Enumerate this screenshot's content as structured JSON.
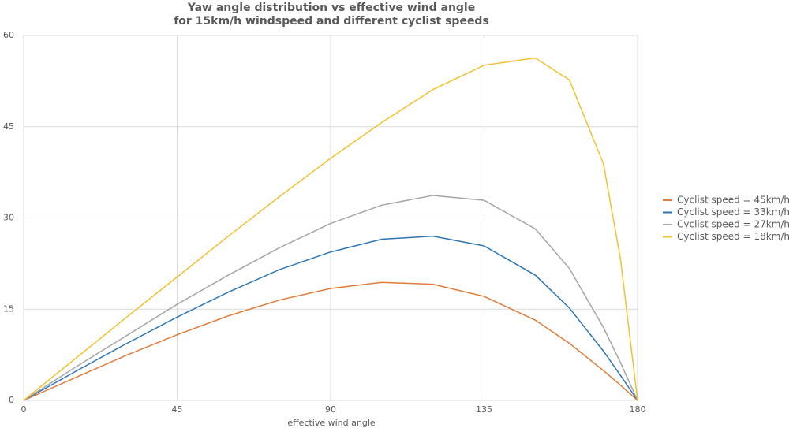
{
  "chart_data": {
    "type": "line",
    "title": [
      "Yaw angle distribution vs effective wind angle",
      "for 15km/h windspeed and different cyclist speeds"
    ],
    "x_label": "effective wind angle",
    "x": [
      0,
      15,
      30,
      45,
      60,
      75,
      90,
      105,
      120,
      135,
      150,
      160,
      170,
      175,
      180
    ],
    "series": [
      {
        "name": "Cyclist speed = 45km/h",
        "color": "#e07b39",
        "values": [
          0,
          3.7,
          7.4,
          10.8,
          13.9,
          16.5,
          18.4,
          19.4,
          19.1,
          17.1,
          13.2,
          9.4,
          4.9,
          2.5,
          0
        ]
      },
      {
        "name": "Cyclist speed = 33km/h",
        "color": "#2e75b6",
        "values": [
          0,
          4.7,
          9.3,
          13.7,
          17.8,
          21.5,
          24.4,
          26.5,
          27.0,
          25.4,
          20.6,
          15.2,
          8.1,
          4.1,
          0
        ]
      },
      {
        "name": "Cyclist speed = 27km/h",
        "color": "#a5a5a5",
        "values": [
          0,
          5.4,
          10.6,
          15.8,
          20.6,
          25.1,
          29.1,
          32.1,
          33.7,
          32.9,
          28.2,
          21.7,
          12.0,
          6.2,
          0
        ]
      },
      {
        "name": "Cyclist speed = 18km/h",
        "color": "#f2c12e",
        "values": [
          0,
          6.8,
          13.6,
          20.3,
          27.0,
          33.5,
          39.8,
          45.7,
          51.1,
          55.1,
          56.3,
          52.7,
          38.9,
          23.2,
          0
        ]
      }
    ],
    "xlim": [
      0,
      180
    ],
    "xticks": [
      0,
      45,
      90,
      135,
      180
    ],
    "ylim": [
      0,
      60
    ],
    "yticks": [
      0,
      15,
      30,
      45,
      60
    ],
    "grid": true,
    "legend": "right"
  }
}
